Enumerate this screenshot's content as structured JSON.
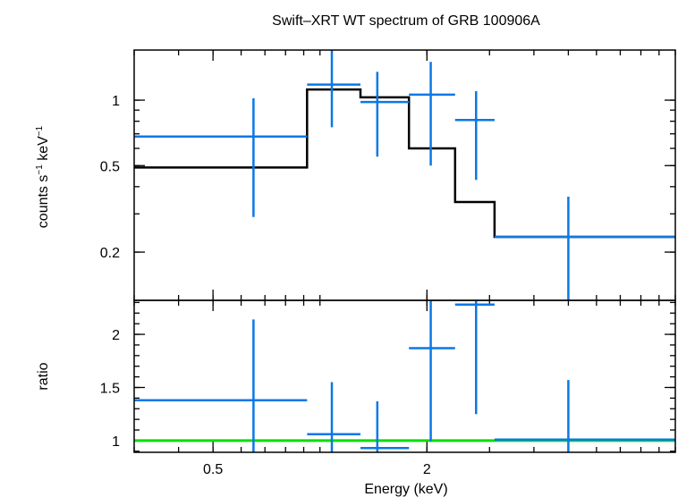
{
  "chart_data": {
    "title": "Swift–XRT WT spectrum of GRB 100906A",
    "xlabel": "Energy (keV)",
    "x_scale": "log",
    "xlim": [
      0.3,
      10
    ],
    "x_ticks": [
      0.5,
      2
    ],
    "colors": {
      "data": "#0a78e6",
      "model": "#000000",
      "unity": "#00e000",
      "frame": "#000000"
    },
    "panels": [
      {
        "name": "spectrum",
        "type": "scatter",
        "ylabel_main": "counts s",
        "ylabel_exp1": "−1",
        "ylabel_mid": " keV",
        "ylabel_exp2": "−1",
        "y_scale": "log",
        "ylim": [
          0.12,
          1.7
        ],
        "y_ticks": [
          0.2,
          0.5,
          1
        ],
        "y_tick_labels": [
          "0.2",
          "0.5",
          "1"
        ],
        "data": [
          {
            "x": 0.65,
            "x_lo": 0.3,
            "x_hi": 0.92,
            "y": 0.68,
            "y_lo": 0.29,
            "y_hi": 1.02
          },
          {
            "x": 1.08,
            "x_lo": 0.92,
            "x_hi": 1.3,
            "y": 1.18,
            "y_lo": 0.75,
            "y_hi": 1.7
          },
          {
            "x": 1.45,
            "x_lo": 1.3,
            "x_hi": 1.78,
            "y": 0.98,
            "y_lo": 0.55,
            "y_hi": 1.35
          },
          {
            "x": 2.05,
            "x_lo": 1.78,
            "x_hi": 2.4,
            "y": 1.06,
            "y_lo": 0.5,
            "y_hi": 1.5
          },
          {
            "x": 2.75,
            "x_lo": 2.4,
            "x_hi": 3.1,
            "y": 0.81,
            "y_lo": 0.43,
            "y_hi": 1.1
          },
          {
            "x": 5.0,
            "x_lo": 3.1,
            "x_hi": 10,
            "y": 0.235,
            "y_lo": 0.12,
            "y_hi": 0.36
          }
        ],
        "model_steps": [
          {
            "x_lo": 0.3,
            "x_hi": 0.92,
            "y": 0.49
          },
          {
            "x_lo": 0.92,
            "x_hi": 1.3,
            "y": 1.12
          },
          {
            "x_lo": 1.3,
            "x_hi": 1.78,
            "y": 1.03
          },
          {
            "x_lo": 1.78,
            "x_hi": 2.4,
            "y": 0.6
          },
          {
            "x_lo": 2.4,
            "x_hi": 3.1,
            "y": 0.34
          },
          {
            "x_lo": 3.1,
            "x_hi": 10,
            "y": 0.235
          }
        ]
      },
      {
        "name": "ratio",
        "type": "scatter",
        "ylabel": "ratio",
        "y_scale": "linear",
        "ylim": [
          0.89,
          2.32
        ],
        "y_ticks": [
          1,
          1.5,
          2
        ],
        "y_tick_labels": [
          "1",
          "1.5",
          "2"
        ],
        "unity_line": 1,
        "data": [
          {
            "x": 0.65,
            "x_lo": 0.3,
            "x_hi": 0.92,
            "y": 1.38,
            "y_lo": 0.89,
            "y_hi": 2.14
          },
          {
            "x": 1.08,
            "x_lo": 0.92,
            "x_hi": 1.3,
            "y": 1.06,
            "y_lo": 0.89,
            "y_hi": 1.55
          },
          {
            "x": 1.45,
            "x_lo": 1.3,
            "x_hi": 1.78,
            "y": 0.93,
            "y_lo": 0.89,
            "y_hi": 1.37
          },
          {
            "x": 2.05,
            "x_lo": 1.78,
            "x_hi": 2.4,
            "y": 1.87,
            "y_lo": 0.99,
            "y_hi": 2.32
          },
          {
            "x": 2.75,
            "x_lo": 2.4,
            "x_hi": 3.1,
            "y": 2.28,
            "y_lo": 1.25,
            "y_hi": 2.32
          },
          {
            "x": 5.0,
            "x_lo": 3.1,
            "x_hi": 10,
            "y": 1.01,
            "y_lo": 0.89,
            "y_hi": 1.57
          }
        ]
      }
    ]
  }
}
